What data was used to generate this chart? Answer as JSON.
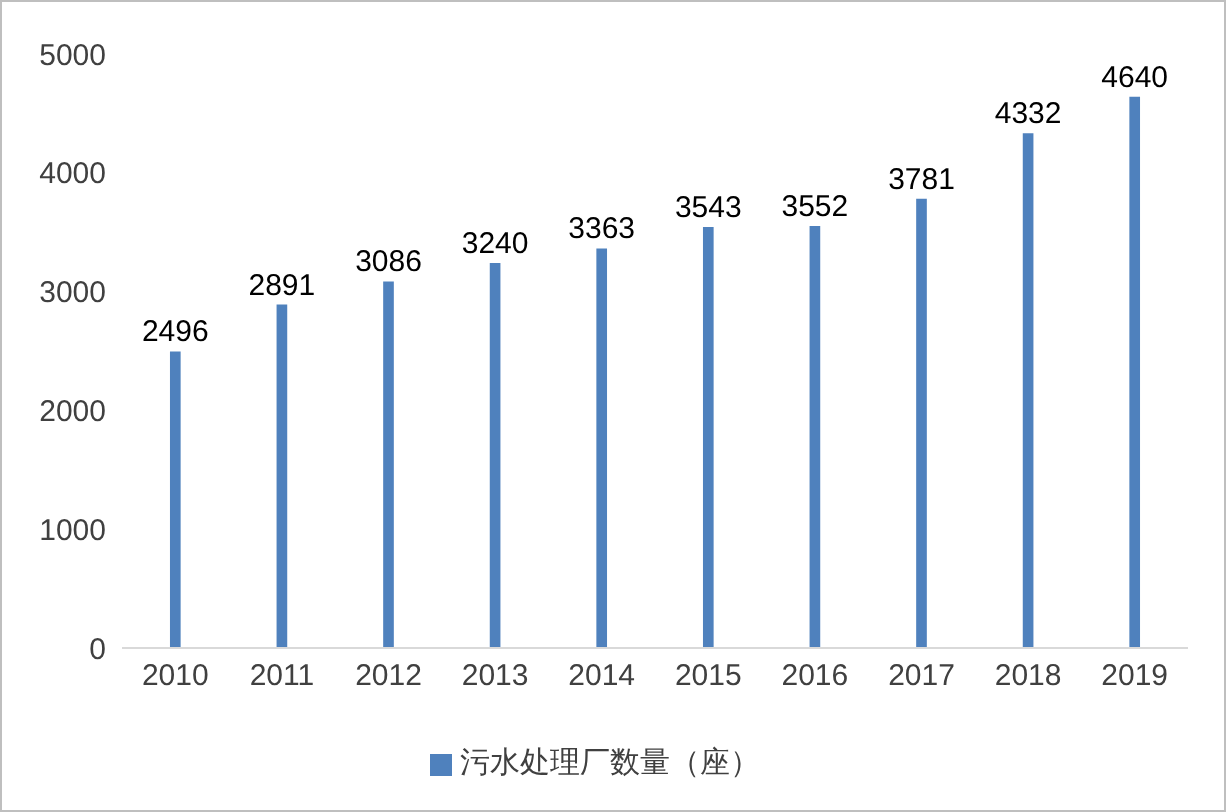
{
  "chart_data": {
    "type": "bar",
    "categories": [
      "2010",
      "2011",
      "2012",
      "2013",
      "2014",
      "2015",
      "2016",
      "2017",
      "2018",
      "2019"
    ],
    "series": [
      {
        "name": "污水处理厂数量（座）",
        "color": "#4f81bd",
        "values": [
          2496,
          2891,
          3086,
          3240,
          3363,
          3543,
          3552,
          3781,
          4332,
          4640
        ]
      }
    ],
    "ylim": [
      0,
      5000
    ],
    "yticks": [
      0,
      1000,
      2000,
      3000,
      4000,
      5000
    ],
    "grid": false,
    "legend": "bottom",
    "data_labels": true
  }
}
